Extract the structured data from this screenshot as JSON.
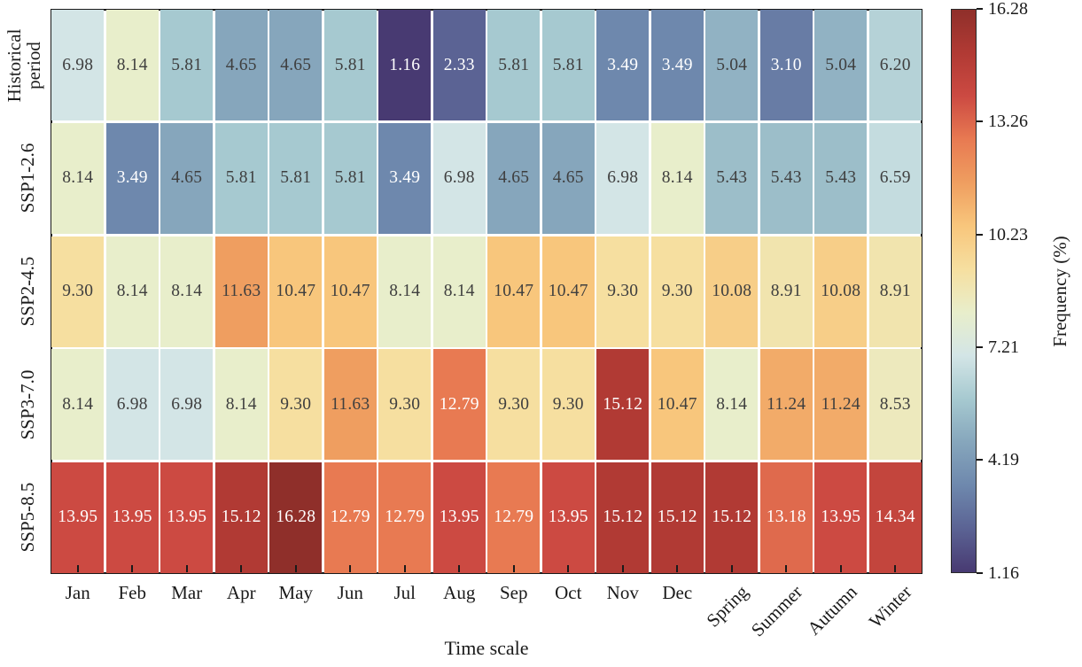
{
  "chart_data": {
    "type": "heatmap",
    "title": "",
    "xlabel": "Time scale",
    "ylabel": "",
    "categories": [
      "Jan",
      "Feb",
      "Mar",
      "Apr",
      "May",
      "Jun",
      "Jul",
      "Aug",
      "Sep",
      "Oct",
      "Nov",
      "Dec",
      "Spring",
      "Summer",
      "Autumn",
      "Winter"
    ],
    "rotated_category_count": 4,
    "rows": [
      {
        "label": "Historical period",
        "label_display": "Historical\nperiod",
        "values": [
          6.98,
          8.14,
          5.81,
          4.65,
          4.65,
          5.81,
          1.16,
          2.33,
          5.81,
          5.81,
          3.49,
          3.49,
          5.04,
          3.1,
          5.04,
          6.2
        ]
      },
      {
        "label": "SSP1-2.6",
        "label_display": "SSP1-2.6",
        "values": [
          8.14,
          3.49,
          4.65,
          5.81,
          5.81,
          5.81,
          3.49,
          6.98,
          4.65,
          4.65,
          6.98,
          8.14,
          5.43,
          5.43,
          5.43,
          6.59
        ]
      },
      {
        "label": "SSP2-4.5",
        "label_display": "SSP2-4.5",
        "values": [
          9.3,
          8.14,
          8.14,
          11.63,
          10.47,
          10.47,
          8.14,
          8.14,
          10.47,
          10.47,
          9.3,
          9.3,
          10.08,
          8.91,
          10.08,
          8.91
        ]
      },
      {
        "label": "SSP3-7.0",
        "label_display": "SSP3-7.0",
        "values": [
          8.14,
          6.98,
          6.98,
          8.14,
          9.3,
          11.63,
          9.3,
          12.79,
          9.3,
          9.3,
          15.12,
          10.47,
          8.14,
          11.24,
          11.24,
          8.53
        ]
      },
      {
        "label": "SSP5-8.5",
        "label_display": "SSP5-8.5",
        "values": [
          13.95,
          13.95,
          13.95,
          15.12,
          16.28,
          12.79,
          12.79,
          13.95,
          12.79,
          13.95,
          15.12,
          15.12,
          15.12,
          13.18,
          13.95,
          14.34
        ]
      }
    ],
    "colorbar": {
      "label": "Frequency (%)",
      "ticks": [
        16.28,
        13.26,
        10.23,
        7.21,
        4.19,
        1.16
      ],
      "vmin": 1.16,
      "vmax": 16.28
    },
    "colormap_stops": [
      [
        1.16,
        "#483a72"
      ],
      [
        2.33,
        "#5b6394"
      ],
      [
        3.49,
        "#6e88ad"
      ],
      [
        4.65,
        "#86a6bc"
      ],
      [
        5.81,
        "#a6c9d0"
      ],
      [
        6.98,
        "#d3e5e6"
      ],
      [
        8.14,
        "#e8eecb"
      ],
      [
        9.3,
        "#f6dfa0"
      ],
      [
        10.47,
        "#f8c67c"
      ],
      [
        11.63,
        "#ef9e60"
      ],
      [
        12.79,
        "#e87a52"
      ],
      [
        13.95,
        "#cc4a42"
      ],
      [
        15.12,
        "#b13a34"
      ],
      [
        16.28,
        "#8f2f2a"
      ]
    ],
    "colors": {
      "background": "#ffffff",
      "gridline": "#ffffff",
      "spine": "#1a1a1a",
      "axis_text": "#1a1a1a",
      "cell_text_dark": "#3f3f3f",
      "cell_text_light": "#ffffff"
    },
    "value_decimals": 2,
    "layout": {
      "grid": false,
      "legend": "colorbar-right",
      "white_text_below": 3.6,
      "white_text_above": 12.6
    }
  }
}
